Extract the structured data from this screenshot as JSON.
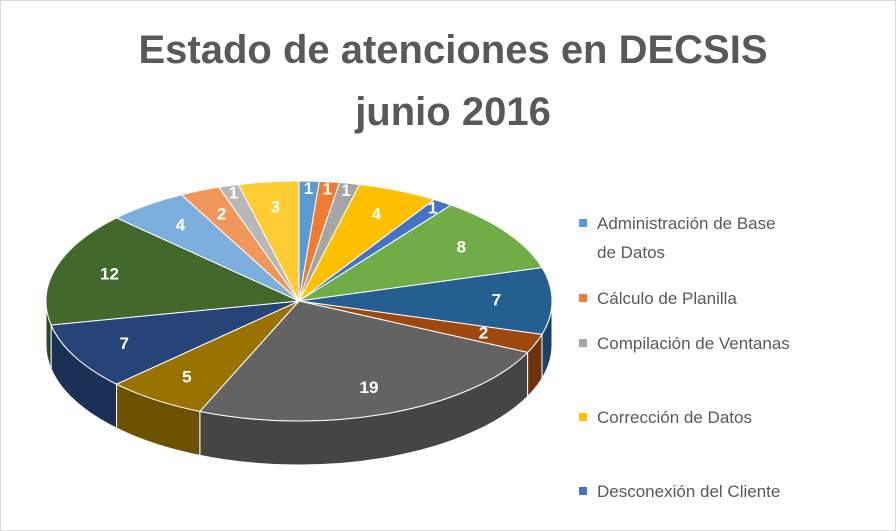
{
  "chart_data": {
    "type": "pie3d",
    "title": [
      "Estado de atenciones en DECSIS",
      "junio 2016"
    ],
    "categories": [
      "Administración de Base de Datos",
      "Cálculo de Planilla",
      "Compilación de Ventanas",
      "Corrección de Datos",
      "Desconexión del Cliente",
      null,
      null,
      null,
      null,
      null,
      null,
      null,
      null,
      null,
      null,
      null
    ],
    "values": [
      1,
      1,
      1,
      4,
      1,
      8,
      7,
      2,
      19,
      5,
      7,
      12,
      4,
      2,
      1,
      3
    ],
    "colors": [
      "#5b9bd5",
      "#ed7d31",
      "#a5a5a5",
      "#ffc000",
      "#4472c4",
      "#70ad47",
      "#255e91",
      "#9e480e",
      "#636363",
      "#997300",
      "#264478",
      "#43682b",
      "#7cafdd",
      "#f1975a",
      "#b7b7b7",
      "#ffcd33"
    ],
    "legend": "right"
  }
}
